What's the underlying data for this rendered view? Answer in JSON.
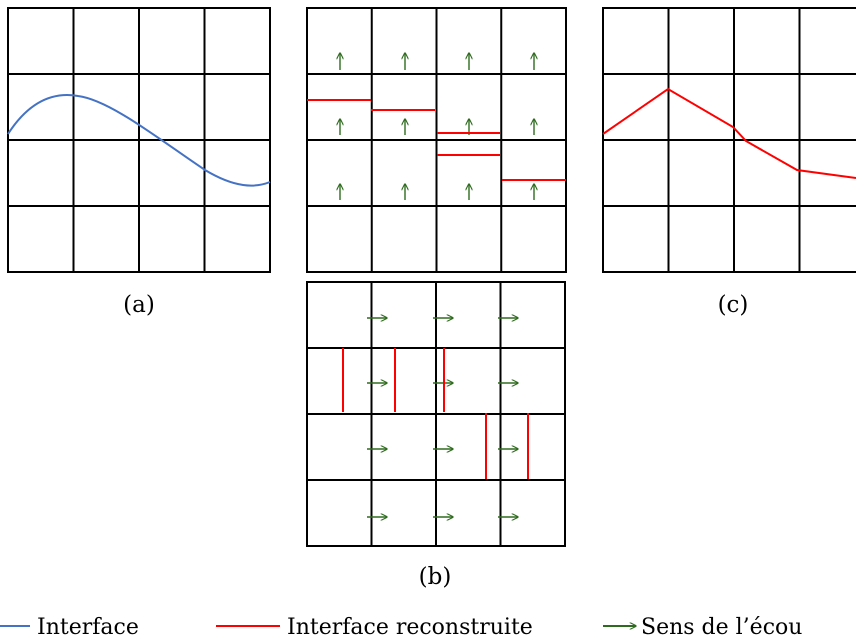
{
  "colors": {
    "grid": "#000000",
    "interface": "#4472c4",
    "reconstructed": "#ff0000",
    "flow": "#2e6b1e"
  },
  "panels": {
    "a": {
      "caption": "(a)"
    },
    "b": {
      "caption": "(b)"
    },
    "c": {
      "caption": "(c)"
    }
  },
  "legend": {
    "interface": "Interface",
    "reconstructed": "Interface reconstruite",
    "flow": "Sens de l’écou"
  }
}
